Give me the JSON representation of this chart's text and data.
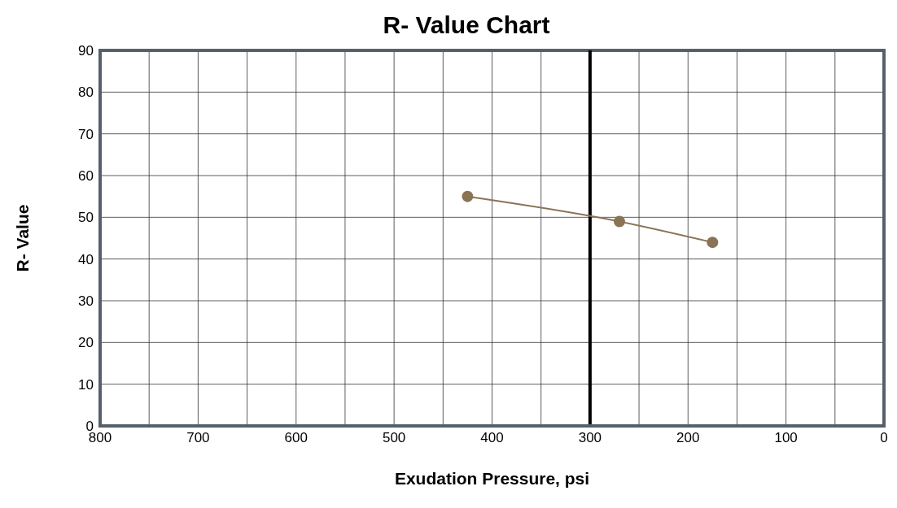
{
  "chart_data": {
    "type": "line",
    "title": "R- Value Chart",
    "xlabel": "Exudation Pressure, psi",
    "ylabel": "R- Value",
    "series": [
      {
        "color": "#8b7355",
        "x": [
          425,
          270,
          175
        ],
        "values": [
          55,
          49,
          44
        ]
      }
    ],
    "xlim": [
      800,
      0
    ],
    "xticks": [
      800,
      {
        "value": 750,
        "label": null
      },
      700,
      {
        "value": 650,
        "label": null
      },
      600,
      {
        "value": 550,
        "label": null
      },
      500,
      {
        "value": 450,
        "label": null
      },
      400,
      {
        "value": 350,
        "label": null
      },
      300,
      {
        "value": 250,
        "label": null
      },
      200,
      {
        "value": 150,
        "label": null
      },
      100,
      {
        "value": 50,
        "label": null
      },
      0
    ],
    "ylim": [
      0,
      90
    ],
    "yticks": [
      0,
      10,
      20,
      30,
      40,
      50,
      60,
      70,
      80,
      90
    ],
    "ref_lines": [
      {
        "axis": "x",
        "value": 300,
        "color": "#000000"
      }
    ],
    "grid": true,
    "marker": "circle",
    "line_style": "solid",
    "legend": false
  }
}
